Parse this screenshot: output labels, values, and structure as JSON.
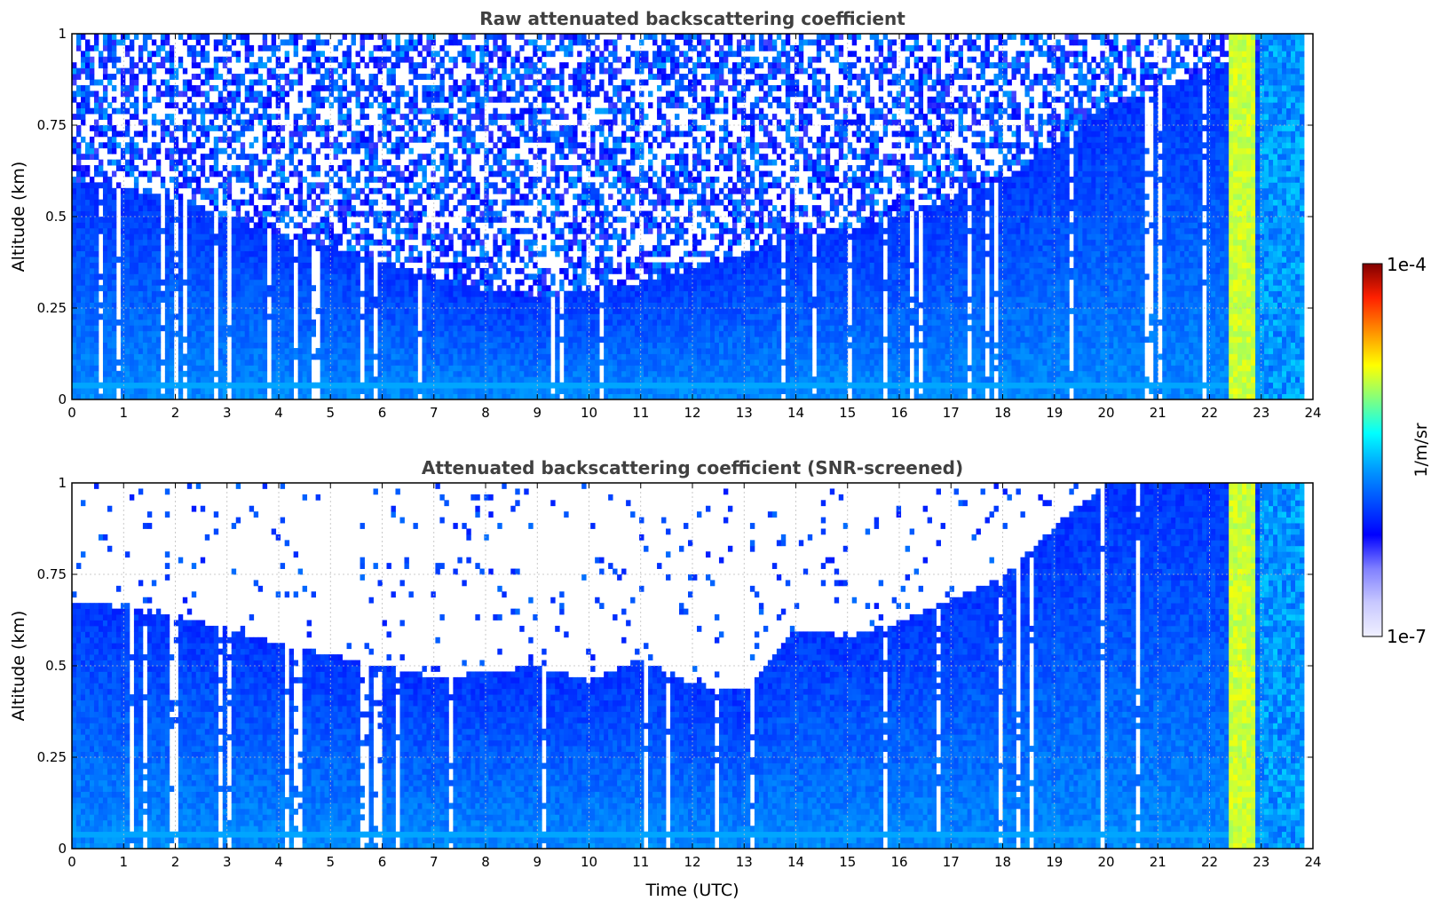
{
  "chart_data": [
    {
      "type": "heatmap",
      "title": "Raw attenuated backscattering coefficient",
      "ylabel": "Altitude (km)",
      "xlabel": "",
      "xlim": [
        0,
        24
      ],
      "ylim": [
        0,
        1
      ],
      "x_ticks": [
        "0",
        "1",
        "2",
        "3",
        "4",
        "5",
        "6",
        "7",
        "8",
        "9",
        "10",
        "11",
        "12",
        "13",
        "14",
        "15",
        "16",
        "17",
        "18",
        "19",
        "20",
        "21",
        "22",
        "23",
        "24"
      ],
      "y_ticks": [
        "0",
        "0.25",
        "0.5",
        "0.75",
        "1"
      ],
      "grid": true,
      "scale": "log",
      "clim": [
        1e-07,
        0.0001
      ],
      "near_surface_layer_km": 0.04,
      "noise_top_profile": {
        "x": [
          0,
          1,
          2,
          3,
          4,
          5,
          6,
          7,
          8,
          9,
          10,
          11,
          12,
          13,
          14,
          15,
          16,
          17,
          18,
          19,
          20,
          21,
          22,
          23,
          24
        ],
        "y": [
          0.6,
          0.58,
          0.55,
          0.5,
          0.45,
          0.42,
          0.38,
          0.33,
          0.3,
          0.28,
          0.3,
          0.32,
          0.36,
          0.4,
          0.45,
          0.47,
          0.5,
          0.55,
          0.6,
          0.7,
          0.8,
          0.85,
          0.9,
          0.95,
          1.0
        ]
      },
      "bright_feature_x": [
        22.4,
        22.85
      ]
    },
    {
      "type": "heatmap",
      "title": "Attenuated backscattering coefficient (SNR-screened)",
      "ylabel": "Altitude (km)",
      "xlabel": "Time (UTC)",
      "xlim": [
        0,
        24
      ],
      "ylim": [
        0,
        1
      ],
      "x_ticks": [
        "0",
        "1",
        "2",
        "3",
        "4",
        "5",
        "6",
        "7",
        "8",
        "9",
        "10",
        "11",
        "12",
        "13",
        "14",
        "15",
        "16",
        "17",
        "18",
        "19",
        "20",
        "21",
        "22",
        "23",
        "24"
      ],
      "y_ticks": [
        "0",
        "0.25",
        "0.5",
        "0.75",
        "1"
      ],
      "grid": true,
      "scale": "log",
      "clim": [
        1e-07,
        0.0001
      ],
      "near_surface_layer_km": 0.04,
      "layer_top_profile": {
        "x": [
          0,
          1,
          2,
          3,
          4,
          5,
          6,
          7,
          8,
          9,
          10,
          11,
          12,
          13,
          14,
          15,
          16,
          17,
          18,
          19,
          20,
          21,
          22,
          23,
          24
        ],
        "y": [
          0.68,
          0.66,
          0.64,
          0.6,
          0.56,
          0.53,
          0.5,
          0.47,
          0.48,
          0.5,
          0.46,
          0.52,
          0.45,
          0.43,
          0.6,
          0.58,
          0.62,
          0.68,
          0.74,
          0.88,
          1.0,
          1.0,
          1.0,
          1.0,
          1.0
        ]
      },
      "bright_feature_x": [
        22.4,
        22.85
      ]
    }
  ],
  "colorbar": {
    "label": "1/m/sr",
    "max_label": "1e-4",
    "min_label": "1e-7",
    "colors": [
      "#f0f0ff",
      "#c8c8ff",
      "#8080ff",
      "#0000ff",
      "#0050ff",
      "#00a0ff",
      "#00ffff",
      "#80ff80",
      "#ffff00",
      "#ff9000",
      "#ff2000",
      "#800000"
    ]
  }
}
